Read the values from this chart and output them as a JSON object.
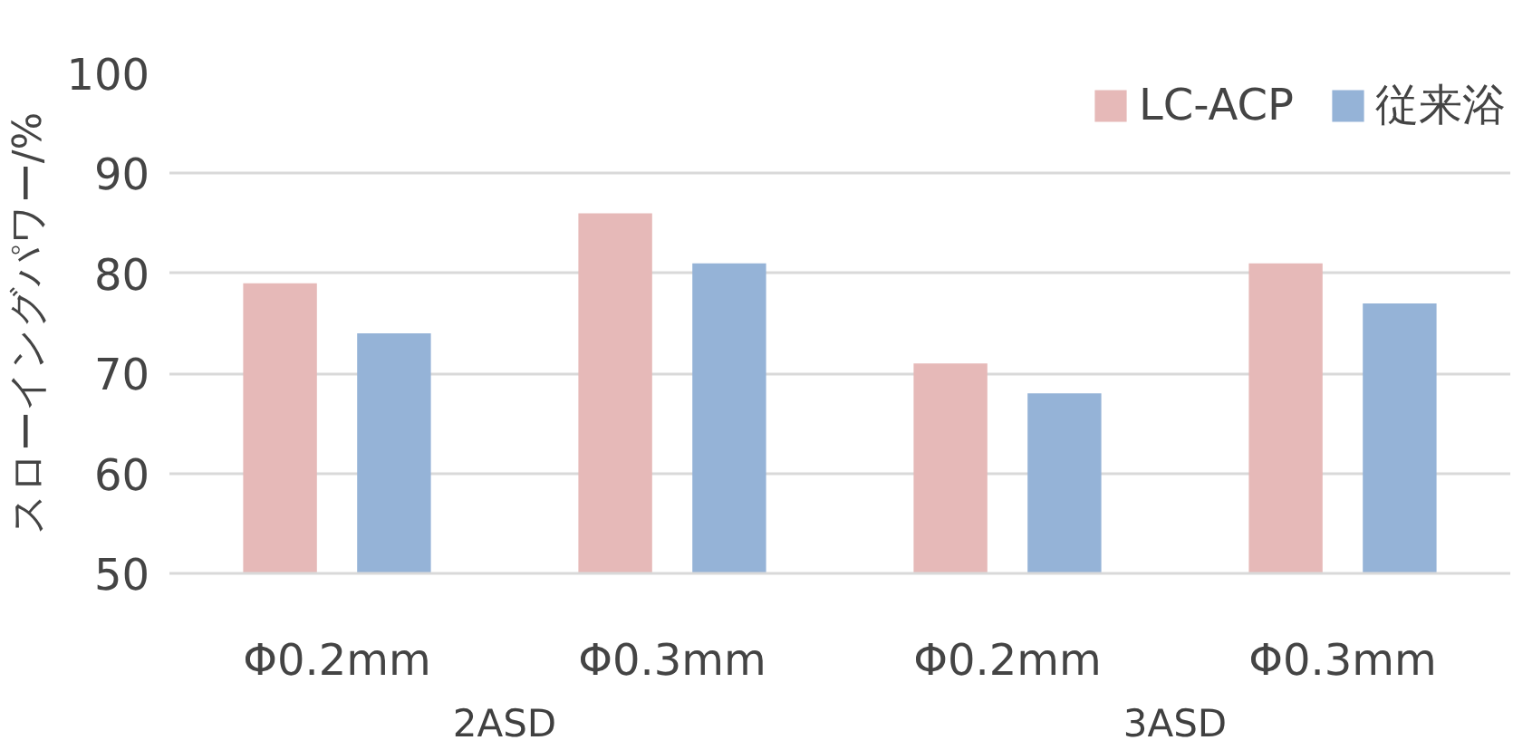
{
  "chart_data": {
    "type": "bar",
    "ylabel": "スローイングパワー/%",
    "categories": [
      "Φ0.2mm",
      "Φ0.3mm",
      "Φ0.2mm",
      "Φ0.3mm"
    ],
    "annotations": [
      "2ASD",
      "3ASD"
    ],
    "series": [
      {
        "name": "LC-ACP",
        "color": "#e6b9b8",
        "values": [
          79,
          86,
          71,
          81
        ]
      },
      {
        "name": "従来浴",
        "color": "#95b3d7",
        "values": [
          74,
          81,
          68,
          77
        ]
      }
    ],
    "ylim": [
      50,
      100
    ],
    "yticks": [
      50,
      60,
      70,
      80,
      90,
      100
    ],
    "grid": "y",
    "legend": "top right"
  }
}
